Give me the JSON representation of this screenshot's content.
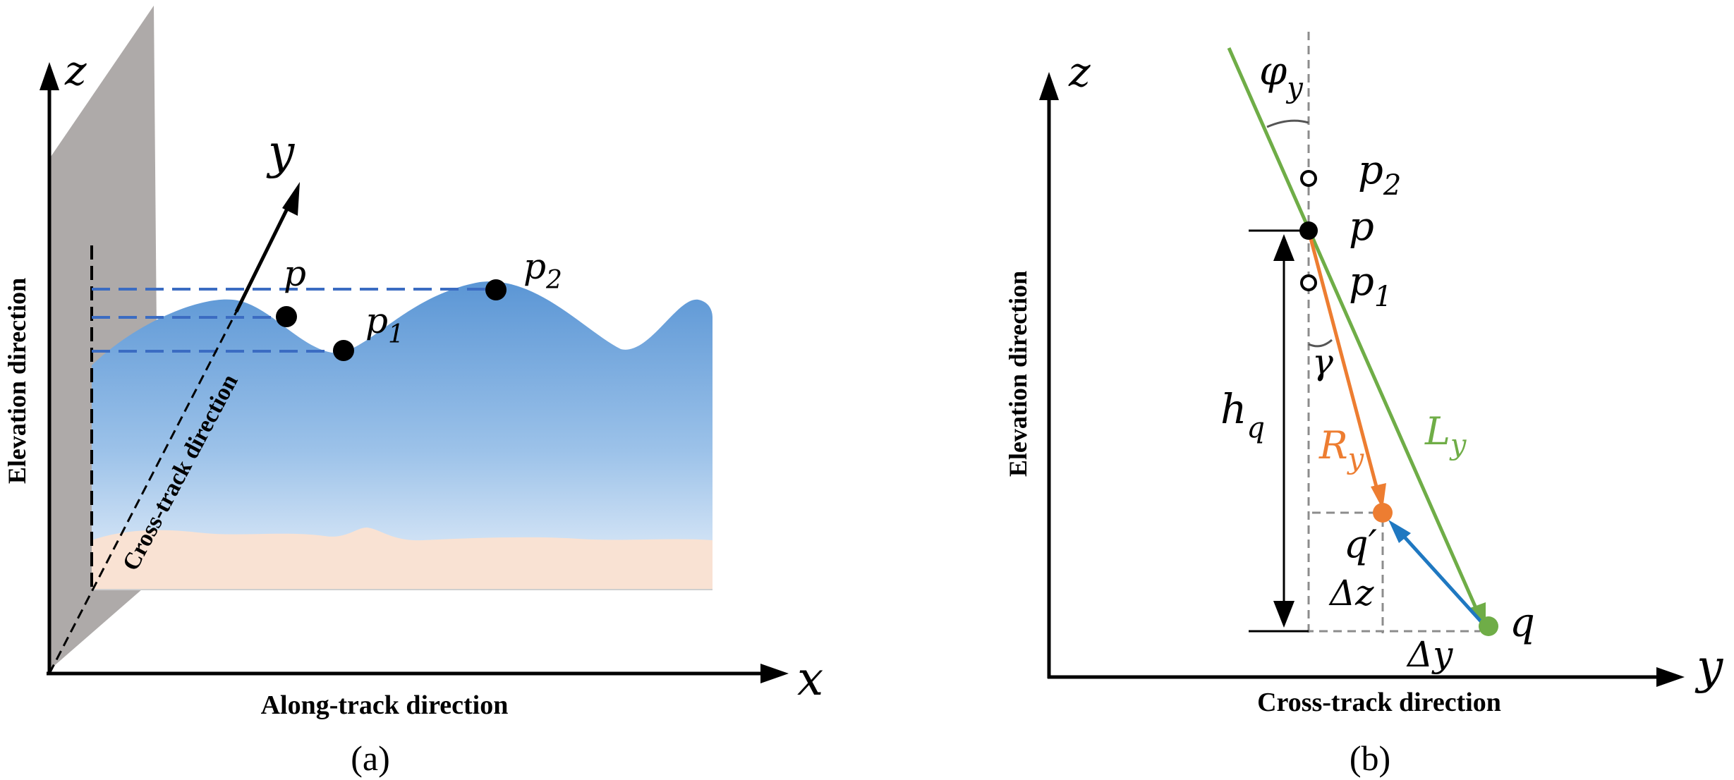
{
  "panel_a": {
    "axis_z": "z",
    "axis_y": "y",
    "axis_x": "x",
    "elevation_label": "Elevation direction",
    "cross_track_label": "Cross-track direction",
    "along_track_label": "Along-track direction",
    "point_p": "p",
    "point_p1_base": "p",
    "point_p1_sub": "1",
    "point_p2_base": "p",
    "point_p2_sub": "2",
    "caption": "(a)",
    "colors": {
      "surface_top": "#5b96d5",
      "surface_bottom": "#e6f0fa",
      "sediment": "#f9e2d3",
      "wall": "#aeaaa9"
    }
  },
  "panel_b": {
    "axis_z": "z",
    "axis_y": "y",
    "elevation_label": "Elevation direction",
    "cross_track_label": "Cross-track direction",
    "phi_base": "φ",
    "phi_sub": "y",
    "point_p": "p",
    "point_p1_base": "p",
    "point_p1_sub": "1",
    "point_p2_base": "p",
    "point_p2_sub": "2",
    "gamma": "γ",
    "h_base": "h",
    "h_sub": "q",
    "r_label": "R",
    "r_sub": "y",
    "l_label": "L",
    "l_sub": "y",
    "q_prime": "q′",
    "q": "q",
    "delta_z": "Δz",
    "delta_y": "Δy",
    "caption": "(b)",
    "colors": {
      "green": "#6fad47",
      "orange": "#ed7d31",
      "blue": "#1f78c1"
    }
  }
}
